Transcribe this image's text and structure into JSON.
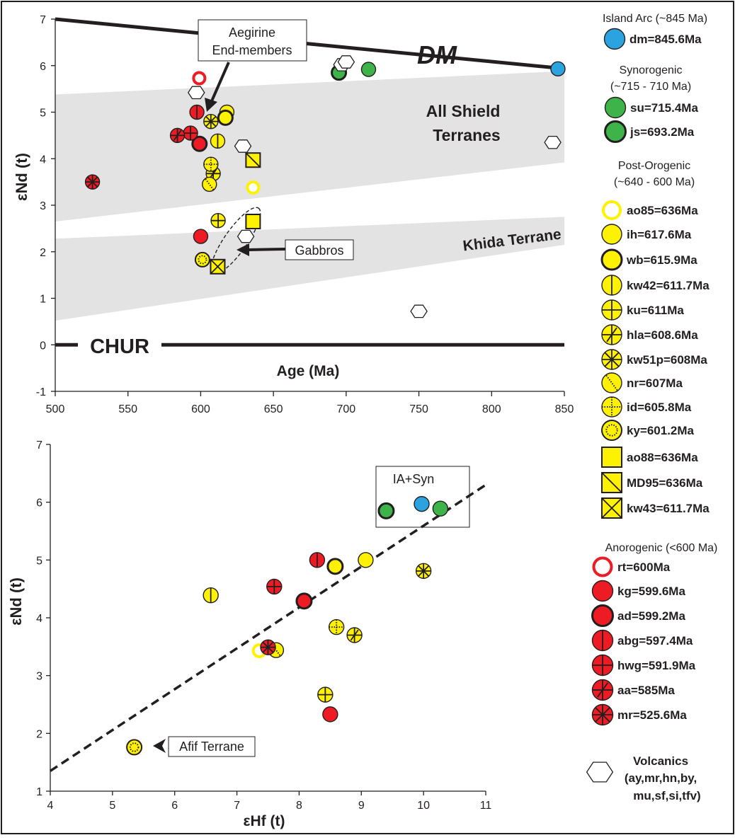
{
  "colors": {
    "arc": "#2aa3e0",
    "syn": "#3db34a",
    "post": "#fff200",
    "anoro": "#ed1c24",
    "field": "#e3e3e3",
    "line": "#231f20"
  },
  "chart_data": [
    {
      "type": "scatter",
      "xlabel": "Age (Ma)",
      "ylabel": "εNd (t)",
      "xlim": [
        500,
        850
      ],
      "ylim": [
        -1,
        7
      ],
      "x_ticks": [
        500,
        550,
        600,
        650,
        700,
        750,
        800,
        850
      ],
      "y_ticks": [
        -1,
        0,
        1,
        2,
        3,
        4,
        5,
        6,
        7
      ],
      "reference_lines": [
        {
          "name": "DM",
          "points": [
            [
              500,
              7.0
            ],
            [
              845,
              5.95
            ]
          ]
        },
        {
          "name": "CHUR",
          "points": [
            [
              500,
              0
            ],
            [
              850,
              0
            ]
          ]
        }
      ],
      "fields": [
        {
          "name": "All Shield Terranes",
          "polygon": [
            [
              500,
              5.38
            ],
            [
              850,
              5.88
            ],
            [
              850,
              3.92
            ],
            [
              500,
              2.65
            ]
          ]
        },
        {
          "name": "Khida Terrane",
          "polygon": [
            [
              500,
              2.28
            ],
            [
              850,
              2.75
            ],
            [
              850,
              2.15
            ],
            [
              500,
              0.52
            ]
          ]
        }
      ],
      "annotations": [
        {
          "text_lines": [
            "Aegirine",
            "End-members"
          ]
        },
        {
          "text_lines": [
            "Gabbros"
          ]
        }
      ],
      "series": [
        {
          "name": "dm=845.6Ma",
          "group": "arc",
          "marker": "fill",
          "points": [
            [
              845.6,
              5.93
            ]
          ]
        },
        {
          "name": "su=715.4Ma",
          "group": "syn",
          "marker": "fill",
          "points": [
            [
              715.4,
              5.92
            ]
          ]
        },
        {
          "name": "js=693.2Ma",
          "group": "syn",
          "marker": "thick",
          "points": [
            [
              695,
              5.85
            ]
          ]
        },
        {
          "name": "ao85=636Ma",
          "group": "post",
          "marker": "ring",
          "points": [
            [
              636,
              3.38
            ]
          ]
        },
        {
          "name": "ih=617.6Ma",
          "group": "post",
          "marker": "fill",
          "points": [
            [
              618,
              5.0
            ]
          ]
        },
        {
          "name": "wb=615.9Ma",
          "group": "post",
          "marker": "thick",
          "points": [
            [
              617,
              4.88
            ]
          ]
        },
        {
          "name": "kw42=611.7Ma",
          "group": "post",
          "marker": "vline",
          "points": [
            [
              611.7,
              4.38
            ]
          ]
        },
        {
          "name": "ku=611Ma",
          "group": "post",
          "marker": "plus",
          "points": [
            [
              612,
              2.67
            ]
          ]
        },
        {
          "name": "hla=608.6Ma",
          "group": "post",
          "marker": "hla",
          "points": [
            [
              608.6,
              3.68
            ]
          ]
        },
        {
          "name": "kw51p=608Ma",
          "group": "post",
          "marker": "star",
          "points": [
            [
              607,
              4.8
            ]
          ]
        },
        {
          "name": "nr=607Ma",
          "group": "post",
          "marker": "dotline",
          "points": [
            [
              606,
              3.45
            ]
          ]
        },
        {
          "name": "id=605.8Ma",
          "group": "post",
          "marker": "dotted",
          "points": [
            [
              607,
              3.88
            ]
          ]
        },
        {
          "name": "ky=601.2Ma",
          "group": "post",
          "marker": "dotring",
          "points": [
            [
              601.2,
              1.83
            ]
          ]
        },
        {
          "name": "ao88=636Ma",
          "group": "post",
          "marker": "sq",
          "points": [
            [
              636,
              2.65
            ]
          ]
        },
        {
          "name": "MD95=636Ma",
          "group": "post",
          "marker": "sqdiag",
          "points": [
            [
              636,
              3.97
            ]
          ]
        },
        {
          "name": "kw43=611.7Ma",
          "group": "post",
          "marker": "sqx",
          "points": [
            [
              611.7,
              1.68
            ]
          ]
        },
        {
          "name": "rt=600Ma",
          "group": "anoro",
          "marker": "ring",
          "points": [
            [
              599,
              5.73
            ]
          ]
        },
        {
          "name": "kg=599.6Ma",
          "group": "anoro",
          "marker": "fill",
          "points": [
            [
              600,
              2.33
            ]
          ]
        },
        {
          "name": "ad=599.2Ma",
          "group": "anoro",
          "marker": "thick",
          "points": [
            [
              599.2,
              4.32
            ]
          ]
        },
        {
          "name": "abg=597.4Ma",
          "group": "anoro",
          "marker": "vline",
          "points": [
            [
              597.4,
              5.0
            ]
          ]
        },
        {
          "name": "hwg=591.9Ma",
          "group": "anoro",
          "marker": "plus",
          "points": [
            [
              593,
              4.55
            ]
          ]
        },
        {
          "name": "aa=585Ma",
          "group": "anoro",
          "marker": "hla",
          "points": [
            [
              584,
              4.5
            ]
          ]
        },
        {
          "name": "mr=525.6Ma",
          "group": "anoro",
          "marker": "star",
          "points": [
            [
              525.6,
              3.5
            ]
          ]
        },
        {
          "name": "Volcanics",
          "group": "volc",
          "marker": "hex",
          "points": [
            [
              597,
              5.42
            ],
            [
              697,
              6.02
            ],
            [
              700,
              6.08
            ],
            [
              629,
              4.27
            ],
            [
              631,
              2.33
            ],
            [
              842,
              4.35
            ],
            [
              750,
              0.72
            ]
          ]
        }
      ]
    },
    {
      "type": "scatter",
      "xlabel": "εHf (t)",
      "ylabel": "εNd (t)",
      "xlim": [
        4,
        11
      ],
      "ylim": [
        1,
        7
      ],
      "x_ticks": [
        4,
        5,
        6,
        7,
        8,
        9,
        10,
        11
      ],
      "y_ticks": [
        1,
        2,
        3,
        4,
        5,
        6,
        7
      ],
      "trend_line": {
        "points": [
          [
            4,
            1.35
          ],
          [
            11,
            6.3
          ]
        ]
      },
      "annotations": [
        {
          "text_lines": [
            "IA+Syn"
          ]
        },
        {
          "text_lines": [
            "Afif Terrane"
          ]
        }
      ],
      "series": [
        {
          "name": "dm=845.6Ma",
          "group": "arc",
          "marker": "fill",
          "points": [
            [
              9.97,
              5.97
            ]
          ]
        },
        {
          "name": "su=715.4Ma",
          "group": "syn",
          "marker": "fill",
          "points": [
            [
              10.27,
              5.89
            ]
          ]
        },
        {
          "name": "js=693.2Ma",
          "group": "syn",
          "marker": "thick",
          "points": [
            [
              9.4,
              5.85
            ]
          ]
        },
        {
          "name": "ao85=636Ma",
          "group": "post",
          "marker": "ring",
          "points": [
            [
              7.36,
              3.43
            ]
          ]
        },
        {
          "name": "ih=617.6Ma",
          "group": "post",
          "marker": "fill",
          "points": [
            [
              9.07,
              5.0
            ]
          ]
        },
        {
          "name": "wb=615.9Ma",
          "group": "post",
          "marker": "thick",
          "points": [
            [
              8.58,
              4.89
            ]
          ]
        },
        {
          "name": "kw42=611.7Ma",
          "group": "post",
          "marker": "vline",
          "points": [
            [
              6.58,
              4.39
            ]
          ]
        },
        {
          "name": "ku=611Ma",
          "group": "post",
          "marker": "plus",
          "points": [
            [
              8.42,
              2.67
            ]
          ]
        },
        {
          "name": "hla=608.6Ma",
          "group": "post",
          "marker": "hla",
          "points": [
            [
              8.89,
              3.7
            ]
          ]
        },
        {
          "name": "kw51p=608Ma",
          "group": "post",
          "marker": "star",
          "points": [
            [
              10.0,
              4.81
            ]
          ]
        },
        {
          "name": "nr=607Ma",
          "group": "post",
          "marker": "dotline",
          "points": [
            [
              7.63,
              3.44
            ]
          ]
        },
        {
          "name": "id=605.8Ma",
          "group": "post",
          "marker": "dotted",
          "points": [
            [
              8.6,
              3.84
            ]
          ]
        },
        {
          "name": "ky=601.2Ma",
          "group": "post",
          "marker": "dotring",
          "points": [
            [
              5.35,
              1.76
            ]
          ]
        },
        {
          "name": "kg=599.6Ma",
          "group": "anoro",
          "marker": "fill",
          "points": [
            [
              8.5,
              2.33
            ]
          ]
        },
        {
          "name": "ad=599.2Ma",
          "group": "anoro",
          "marker": "thick",
          "points": [
            [
              8.08,
              4.29
            ]
          ]
        },
        {
          "name": "abg=597.4Ma",
          "group": "anoro",
          "marker": "vline",
          "points": [
            [
              8.29,
              5.0
            ]
          ]
        },
        {
          "name": "hwg=591.9Ma",
          "group": "anoro",
          "marker": "plus",
          "points": [
            [
              7.6,
              4.54
            ]
          ]
        },
        {
          "name": "mr=525.6Ma",
          "group": "anoro",
          "marker": "star",
          "points": [
            [
              7.5,
              3.49
            ]
          ]
        }
      ]
    }
  ],
  "legend": {
    "groups": [
      {
        "title": "Island Arc (~845 Ma)",
        "entries": [
          {
            "marker": "fill",
            "group": "arc",
            "label": "dm=845.6Ma"
          }
        ]
      },
      {
        "title_lines": [
          "Synorogenic",
          "(~715 - 710 Ma)"
        ],
        "entries": [
          {
            "marker": "fill",
            "group": "syn",
            "label": "su=715.4Ma"
          },
          {
            "marker": "thick",
            "group": "syn",
            "label": "js=693.2Ma"
          }
        ]
      },
      {
        "title_lines": [
          "Post-Orogenic",
          "(~640 - 600 Ma)"
        ],
        "entries": [
          {
            "marker": "ring",
            "group": "post",
            "label": "ao85=636Ma"
          },
          {
            "marker": "fill",
            "group": "post",
            "label": "ih=617.6Ma"
          },
          {
            "marker": "thick",
            "group": "post",
            "label": "wb=615.9Ma"
          },
          {
            "marker": "vline",
            "group": "post",
            "label": "kw42=611.7Ma"
          },
          {
            "marker": "plus",
            "group": "post",
            "label": "ku=611Ma"
          },
          {
            "marker": "hla",
            "group": "post",
            "label": "hla=608.6Ma"
          },
          {
            "marker": "star",
            "group": "post",
            "label": "kw51p=608Ma"
          },
          {
            "marker": "dotline",
            "group": "post",
            "label": "nr=607Ma"
          },
          {
            "marker": "dotted",
            "group": "post",
            "label": "id=605.8Ma"
          },
          {
            "marker": "dotring",
            "group": "post",
            "label": "ky=601.2Ma"
          },
          {
            "marker": "sq",
            "group": "post",
            "label": "ao88=636Ma"
          },
          {
            "marker": "sqdiag",
            "group": "post",
            "label": "MD95=636Ma"
          },
          {
            "marker": "sqx",
            "group": "post",
            "label": "kw43=611.7Ma"
          }
        ]
      },
      {
        "title": "Anorogenic (<600 Ma)",
        "entries": [
          {
            "marker": "ring",
            "group": "anoro",
            "label": "rt=600Ma"
          },
          {
            "marker": "fill",
            "group": "anoro",
            "label": "kg=599.6Ma"
          },
          {
            "marker": "thick",
            "group": "anoro",
            "label": "ad=599.2Ma"
          },
          {
            "marker": "vline",
            "group": "anoro",
            "label": "abg=597.4Ma"
          },
          {
            "marker": "plus",
            "group": "anoro",
            "label": "hwg=591.9Ma"
          },
          {
            "marker": "hla",
            "group": "anoro",
            "label": "aa=585Ma"
          },
          {
            "marker": "star",
            "group": "anoro",
            "label": "mr=525.6Ma"
          }
        ]
      },
      {
        "entries": [
          {
            "marker": "hex",
            "group": "volc",
            "label_lines": [
              "Volcanics",
              "(ay,mr,hn,by,",
              "mu,sf,si,tfv)"
            ]
          }
        ]
      }
    ]
  }
}
